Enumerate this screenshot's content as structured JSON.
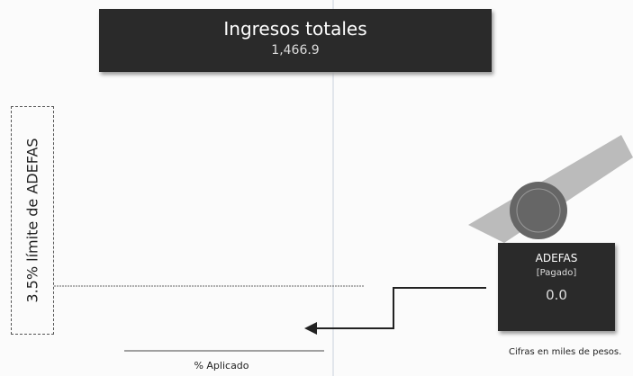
{
  "header": {
    "title": "Ingresos totales",
    "value": "1,466.9"
  },
  "limit_label": "3.5% límite de ADEFAS",
  "adefas": {
    "title": "ADEFAS",
    "status": "[Pagado]",
    "value": "0.0"
  },
  "note": "Cifras en miles de pesos.",
  "footer_label": "% Aplicado"
}
